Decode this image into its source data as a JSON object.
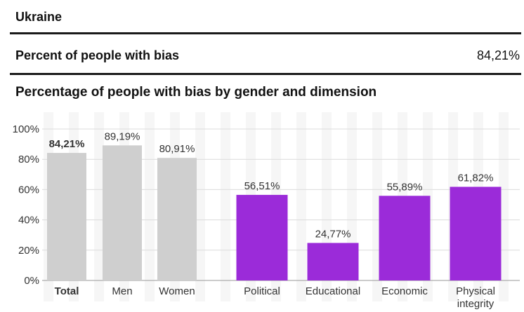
{
  "header": {
    "country": "Ukraine",
    "metric_label": "Percent of people with bias",
    "metric_value": "84,21%"
  },
  "chart_data": {
    "type": "bar",
    "title": "Percentage of people with bias by gender and dimension",
    "xlabel": "",
    "ylabel": "",
    "ylim": [
      0,
      100
    ],
    "yticks": [
      "0%",
      "20%",
      "40%",
      "60%",
      "80%",
      "100%"
    ],
    "grid": true,
    "categories": [
      "Total",
      "Men",
      "Women",
      "Political",
      "Educational",
      "Economic",
      "Physical integrity"
    ],
    "values": [
      84.21,
      89.19,
      80.91,
      56.51,
      24.77,
      55.89,
      61.82
    ],
    "value_labels": [
      "84,21%",
      "89,19%",
      "80,91%",
      "56,51%",
      "24,77%",
      "55,89%",
      "61,82%"
    ],
    "groups": [
      "gender",
      "gender",
      "gender",
      "dimension",
      "dimension",
      "dimension",
      "dimension"
    ],
    "colors": {
      "gender": "#cfcfcf",
      "dimension": "#9b2bd9"
    }
  }
}
